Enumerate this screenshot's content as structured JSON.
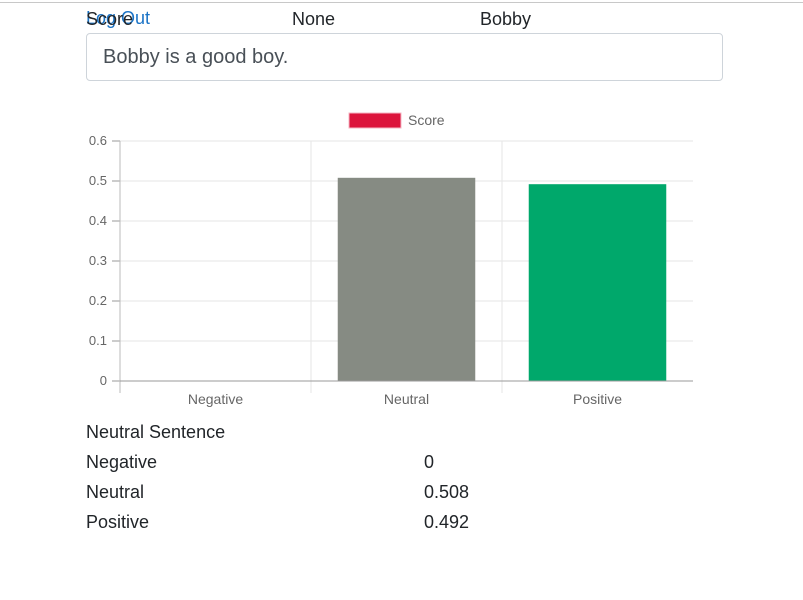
{
  "header": {
    "score_label": "Score",
    "status": "None",
    "username": "Bobby",
    "logout_label": "Log Out"
  },
  "input": {
    "value": "Bobby is a good boy."
  },
  "chart_data": {
    "type": "bar",
    "categories": [
      "Negative",
      "Neutral",
      "Positive"
    ],
    "series": [
      {
        "name": "Score",
        "values": [
          0,
          0.508,
          0.492
        ]
      }
    ],
    "bar_colors": [
      "#dc143c",
      "#868b83",
      "#00a86b"
    ],
    "legend_color": "#dc143c",
    "ylim": [
      0,
      0.6
    ],
    "yticks": [
      "0",
      "0.1",
      "0.2",
      "0.3",
      "0.4",
      "0.5",
      "0.6"
    ],
    "legend_position": "top",
    "grid": true
  },
  "results": {
    "title": "Neutral Sentence",
    "rows": [
      {
        "label": "Negative",
        "value": "0"
      },
      {
        "label": "Neutral",
        "value": "0.508"
      },
      {
        "label": "Positive",
        "value": "0.492"
      }
    ]
  }
}
